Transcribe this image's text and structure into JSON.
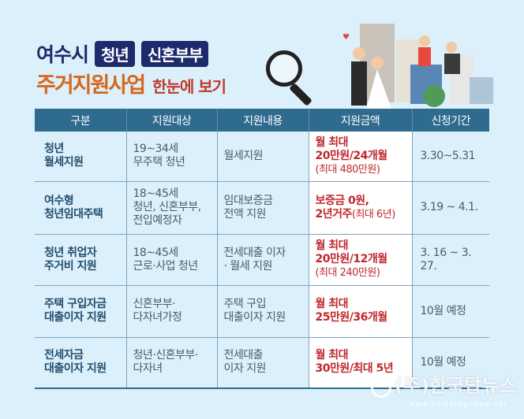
{
  "title": {
    "city": "여수시",
    "badge1": "청년",
    "badge2": "신혼부부",
    "main": "주거지원사업",
    "sub": "한눈에 보기"
  },
  "table": {
    "headers": [
      "구분",
      "지원대상",
      "지원내용",
      "지원금액",
      "신청기간"
    ],
    "rows": [
      {
        "category": [
          "청년",
          "월세지원"
        ],
        "target": [
          "19~34세",
          "무주택 청년"
        ],
        "content": [
          "월세지원"
        ],
        "amount": [
          "월 최대",
          "20만원/24개월"
        ],
        "amount_note": "(최대 480만원)",
        "period": "3.30~5.31"
      },
      {
        "category": [
          "여수형",
          "청년임대주택"
        ],
        "target": [
          "18~45세",
          "청년, 신혼부부,",
          "전입예정자"
        ],
        "content": [
          "임대보증금",
          "전액 지원"
        ],
        "amount": [
          "보증금 0원,",
          "2년거주"
        ],
        "amount_note": "(최대 6년)",
        "period": "3.19 ~ 4.1."
      },
      {
        "category": [
          "청년 취업자",
          "주거비 지원"
        ],
        "target": [
          "18~45세",
          "근로·사업 청년"
        ],
        "content": [
          "전세대출 이자",
          "· 월세 지원"
        ],
        "amount": [
          "월 최대",
          "20만원/12개월"
        ],
        "amount_note": "(최대 240만원)",
        "period": "3. 16 ~ 3. 27."
      },
      {
        "category": [
          "주택 구입자금",
          "대출이자 지원"
        ],
        "target": [
          "신혼부부·",
          "다자녀가정"
        ],
        "content": [
          "주택 구입",
          "대출이자 지원"
        ],
        "amount": [
          "월 최대",
          "25만원/36개월"
        ],
        "amount_note": "",
        "period": "10월 예정"
      },
      {
        "category": [
          "전세자금",
          "대출이자 지원"
        ],
        "target": [
          "청년·신혼부부·",
          "다자녀"
        ],
        "content": [
          "전세대출",
          "이자 지원"
        ],
        "amount": [
          "월 최대",
          "30만원/최대 5년"
        ],
        "amount_note": "",
        "period": "10월 예정"
      }
    ]
  },
  "watermark": {
    "name": "(주)한국탑뉴스",
    "url": "www.koreatopnews.net"
  },
  "colors": {
    "background": "#dcf0fb",
    "header": "#2f6b8f",
    "navy": "#1d2a6b",
    "orange": "#d8661b",
    "red": "#c0272d"
  }
}
